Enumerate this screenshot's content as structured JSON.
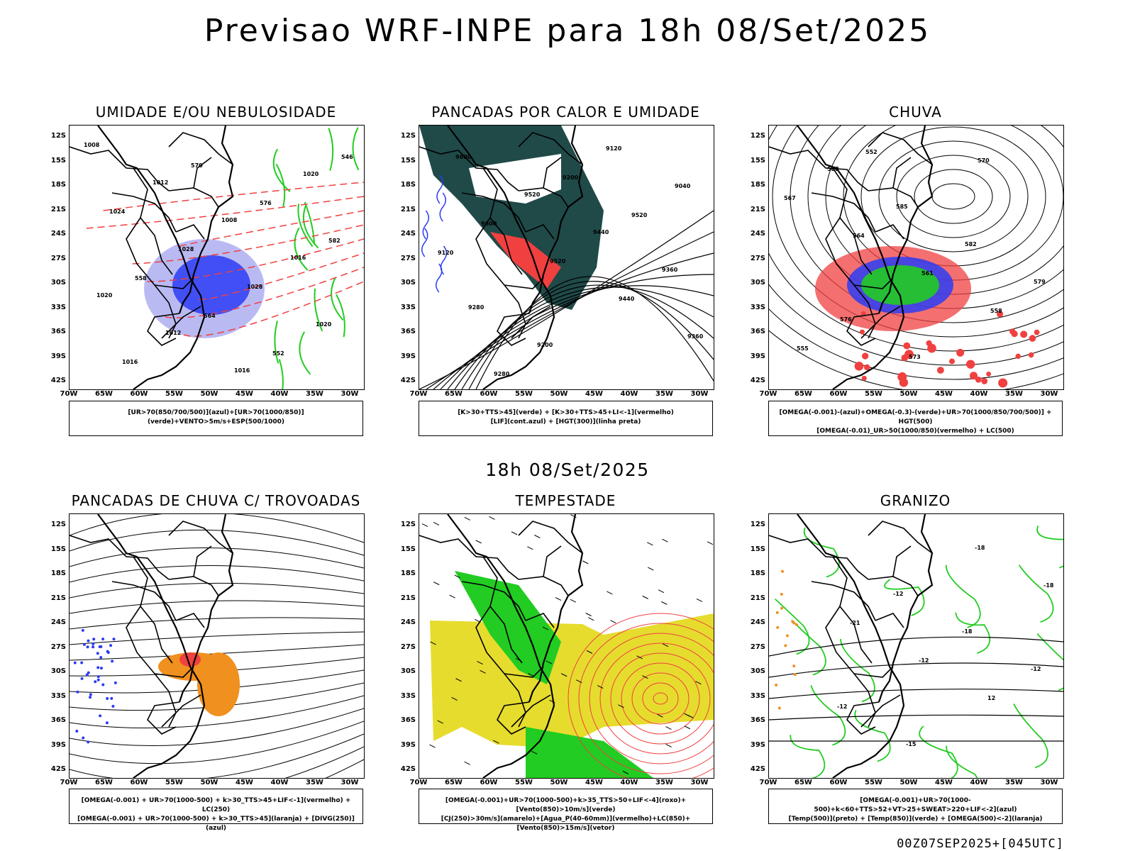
{
  "header": {
    "title": "Previsao WRF-INPE  para 18h 08/Set/2025",
    "mid_date": "18h 08/Set/2025",
    "run_info": "00Z07SEP2025+[045UTC]"
  },
  "axes": {
    "lat_labels": [
      "12S",
      "15S",
      "18S",
      "21S",
      "24S",
      "27S",
      "30S",
      "33S",
      "36S",
      "39S",
      "42S"
    ],
    "lon_labels": [
      "70W",
      "65W",
      "60W",
      "55W",
      "50W",
      "45W",
      "40W",
      "35W",
      "30W"
    ]
  },
  "panels": [
    {
      "title": "UMIDADE E/OU NEBULOSIDADE",
      "legend": [
        "[UR>70(850/700/500)](azul)+[UR>70(1000/850)](verde)+VENTO>5m/s+ESP(500/1000)"
      ],
      "contour_labels": [
        "1008",
        "1012",
        "1008",
        "1016",
        "1020",
        "1012",
        "1016",
        "1020",
        "1024",
        "1028",
        "1028",
        "1020",
        "1016",
        "570",
        "576",
        "582",
        "558",
        "564",
        "552",
        "546"
      ]
    },
    {
      "title": "PANCADAS POR CALOR E UMIDADE",
      "legend": [
        "[K>30+TTS>45](verde) + [K>30+TTS>45+LI<-1](vermelho)",
        "[LIF](cont.azul) + [HGT(300)](linha preta)"
      ],
      "contour_labels": [
        "9600",
        "9520",
        "9440",
        "9360",
        "9280",
        "9200",
        "9120",
        "9040",
        "9600",
        "9520",
        "9440",
        "9360",
        "9280",
        "9200",
        "9520",
        "9120"
      ]
    },
    {
      "title": "CHUVA",
      "legend": [
        "[OMEGA(-0.001)-(azul)+OMEGA(-0.3)-(verde)+UR>70(1000/850/700/500)] + HGT(500)",
        "[OMEGA(-0.01)_UR>50(1000/850)(vermelho) + LC(500)"
      ],
      "contour_labels": [
        "588",
        "585",
        "582",
        "579",
        "576",
        "573",
        "570",
        "567",
        "564",
        "561",
        "558",
        "555",
        "552"
      ]
    },
    {
      "title": "PANCADAS DE CHUVA C/ TROVOADAS",
      "legend": [
        "[OMEGA(-0.001) + UR>70(1000-500) + k>30_TTS>45+LIF<-1](vermelho) + LC(250)",
        "[OMEGA(-0.001) + UR>70(1000-500) + k>30_TTS>45](laranja) + [DIVG(250)](azul)"
      ],
      "contour_labels": []
    },
    {
      "title": "TEMPESTADE",
      "legend": [
        "[OMEGA(-0.001)+UR>70(1000-500)+k>35_TTS>50+LIF<-4](roxo)+[Vento(850)>10m/s](verde)",
        "[CJ(250)>30m/s](amarelo)+[Agua_P(40-60mm)](vermelho)+LC(850)+[Vento(850)>15m/s](vetor)"
      ],
      "contour_labels": []
    },
    {
      "title": "GRANIZO",
      "legend": [
        "[OMEGA(-0.001)+UR>70(1000-500)+k<60+TTS>52+VT>25+SWEAT>220+LIF<-2](azul)",
        "[Temp(500)](preto) + [Temp(850)](verde) + [OMEGA(500)<-2](laranja)"
      ],
      "contour_labels": [
        "-12",
        "-18",
        "-12",
        "-12",
        "-15",
        "-18",
        "-18",
        "-21",
        "-12",
        "12"
      ]
    }
  ],
  "colors": {
    "blue": "#2b3cf5",
    "light_blue": "#a9a9f0",
    "green": "#22cc22",
    "red": "#f04040",
    "dark_teal": "#1f4a48",
    "orange": "#f0901e",
    "yellow": "#e6dc2e"
  }
}
